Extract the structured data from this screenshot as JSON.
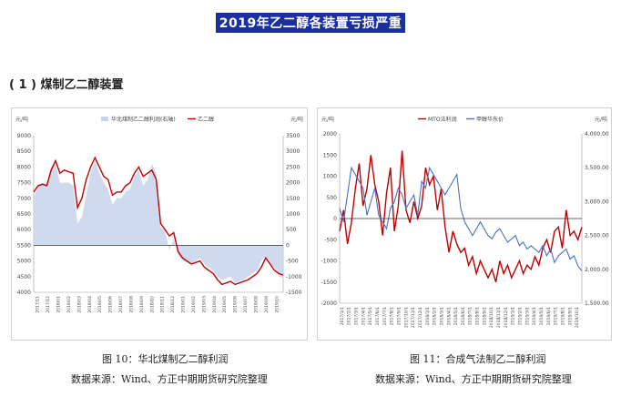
{
  "page": {
    "title": "2019年乙二醇各装置亏损严重",
    "section_heading": "( 1 ) 煤制乙二醇装置"
  },
  "chart_data": [
    {
      "type": "line",
      "caption": "图 10：华北煤制乙二醇利润",
      "source": "数据来源：Wind、方正中期期货研究院整理",
      "left_unit": "元/吨",
      "right_unit": "元/吨",
      "left_ylim": [
        4000,
        9000
      ],
      "left_ticks": [
        4000,
        4500,
        5000,
        5500,
        6000,
        6500,
        7000,
        7500,
        8000,
        8500,
        9000
      ],
      "right_ylim": [
        -1500,
        3500
      ],
      "right_ticks": [
        -1500,
        -1000,
        -500,
        0,
        500,
        1000,
        1500,
        2000,
        2500,
        3000,
        3500
      ],
      "x_labels": [
        "2017/11",
        "2017/12",
        "2018/01",
        "2018/02",
        "2018/03",
        "2018/04",
        "2018/05",
        "2018/06",
        "2018/07",
        "2018/08",
        "2018/09",
        "2018/10",
        "2018/11",
        "2018/12",
        "2019/01",
        "2019/02",
        "2019/03",
        "2019/04",
        "2019/05",
        "2019/06",
        "2019/07",
        "2019/08",
        "2019/09",
        "2019/10"
      ],
      "series": [
        {
          "name": "华北煤制乙二醇利润(右轴)",
          "axis": "right",
          "kind": "area",
          "color": "#c7d3ec",
          "values": [
            1500,
            1900,
            2000,
            2000,
            2500,
            2600,
            2000,
            2000,
            2000,
            1900,
            700,
            900,
            1600,
            2300,
            2700,
            2300,
            2000,
            1800,
            1300,
            1500,
            1500,
            1700,
            1800,
            2200,
            2400,
            1900,
            2100,
            2600,
            2300,
            600,
            450,
            -150,
            200,
            -300,
            -500,
            -550,
            -600,
            -500,
            -400,
            -600,
            -700,
            -800,
            -1000,
            -1100,
            -1050,
            -1000,
            -1200,
            -1150,
            -1100,
            -1000,
            -900,
            -800,
            -500,
            -350,
            -600,
            -700,
            -1000,
            -1050
          ]
        },
        {
          "name": "乙二醇",
          "axis": "left",
          "kind": "line",
          "color": "#c00000",
          "values": [
            7200,
            7400,
            7450,
            7400,
            7900,
            8200,
            7800,
            7900,
            7850,
            7800,
            6700,
            7000,
            7600,
            8000,
            8300,
            8000,
            7700,
            7600,
            7100,
            7200,
            7200,
            7400,
            7500,
            7800,
            8000,
            7700,
            7800,
            7900,
            7600,
            6200,
            6000,
            5800,
            5900,
            5300,
            5100,
            5000,
            4900,
            4950,
            5000,
            4800,
            4700,
            4600,
            4400,
            4250,
            4300,
            4350,
            4250,
            4300,
            4350,
            4400,
            4500,
            4600,
            4800,
            5100,
            4900,
            4700,
            4600,
            4550
          ]
        }
      ]
    },
    {
      "type": "line",
      "caption": "图 11：合成气法制乙二醇利润",
      "source": "数据来源：Wind、方正中期期货研究院整理",
      "left_unit": "元/吨",
      "right_unit": "元/吨",
      "left_ylim": [
        -2000,
        2000
      ],
      "left_ticks": [
        -2000,
        -1500,
        -1000,
        -500,
        0,
        500,
        1000,
        1500,
        2000
      ],
      "right_ylim": [
        1500,
        4000
      ],
      "right_ticks": [
        "1,500.00",
        "2,000.00",
        "2,500.00",
        "3,000.00",
        "3,500.00",
        "4,000.00"
      ],
      "x_labels": [
        "2017/1/1",
        "2017/2/1",
        "2017/3/1",
        "2017/4/1",
        "2017/5/1",
        "2017/6/1",
        "2017/7/1",
        "2017/8/1",
        "2017/9/1",
        "2017/10/1",
        "2017/11/1",
        "2017/12/1",
        "2018/1/1",
        "2018/2/1",
        "2018/3/1",
        "2018/4/1",
        "2018/5/1",
        "2018/6/1",
        "2018/7/1",
        "2018/8/1",
        "2018/9/1",
        "2018/10/1",
        "2018/11/1",
        "2018/12/1",
        "2019/1/1",
        "2019/2/1",
        "2019/3/1",
        "2019/4/1",
        "2019/5/1",
        "2019/6/1",
        "2019/7/1",
        "2019/8/1",
        "2019/9/1",
        "2019/10/1"
      ],
      "series": [
        {
          "name": "MTO法利润",
          "axis": "left",
          "kind": "line",
          "color": "#c00000",
          "values": [
            -300,
            200,
            -600,
            -100,
            700,
            1300,
            300,
            700,
            1500,
            800,
            400,
            -400,
            600,
            1200,
            -300,
            300,
            1600,
            200,
            -100,
            400,
            0,
            300,
            1200,
            800,
            1000,
            200,
            700,
            -200,
            -800,
            -300,
            -600,
            -800,
            -700,
            -1100,
            -900,
            -1300,
            -1000,
            -1200,
            -1400,
            -1200,
            -1500,
            -1000,
            -1300,
            -1100,
            -1400,
            -1200,
            -1000,
            -1300,
            -1100,
            -1200,
            -900,
            -1100,
            -700,
            -500,
            -800,
            -300,
            -200,
            -700,
            200,
            -400,
            -300,
            -500,
            -200
          ]
        },
        {
          "name": "甲醇华东价",
          "axis": "right",
          "kind": "line",
          "color": "#4472c4",
          "values": [
            2900,
            2700,
            3100,
            3500,
            3400,
            3300,
            3200,
            2800,
            3000,
            3200,
            2800,
            2700,
            2600,
            2900,
            3000,
            3200,
            3100,
            2900,
            3000,
            3100,
            2800,
            3300,
            3200,
            3500,
            3400,
            3300,
            3200,
            3100,
            3200,
            3300,
            3400,
            2900,
            2700,
            2600,
            2500,
            2600,
            2700,
            2600,
            2500,
            2450,
            2550,
            2600,
            2500,
            2400,
            2450,
            2500,
            2350,
            2400,
            2300,
            2350,
            2300,
            2250,
            2350,
            2200,
            2300,
            2100,
            2200,
            2250,
            2300,
            2150,
            2200,
            2050,
            1980
          ]
        }
      ]
    }
  ]
}
